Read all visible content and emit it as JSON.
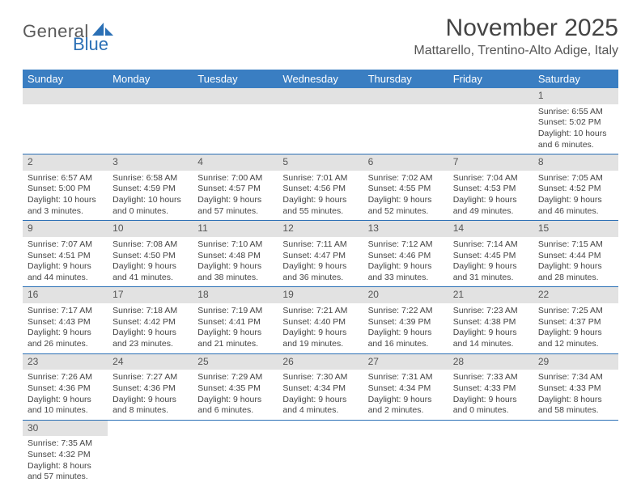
{
  "logo": {
    "general": "General",
    "blue": "Blue"
  },
  "title": "November 2025",
  "location": "Mattarello, Trentino-Alto Adige, Italy",
  "dayHeaders": [
    "Sunday",
    "Monday",
    "Tuesday",
    "Wednesday",
    "Thursday",
    "Friday",
    "Saturday"
  ],
  "colors": {
    "header_bg": "#3a7ec2",
    "header_fg": "#ffffff",
    "daynum_bg": "#e2e2e2",
    "cell_border": "#2a6fb5",
    "text": "#444444",
    "logo_gray": "#5a5a5a",
    "logo_blue": "#2a6fb5"
  },
  "weeks": [
    [
      null,
      null,
      null,
      null,
      null,
      null,
      {
        "n": "1",
        "sunrise": "Sunrise: 6:55 AM",
        "sunset": "Sunset: 5:02 PM",
        "day1": "Daylight: 10 hours",
        "day2": "and 6 minutes."
      }
    ],
    [
      {
        "n": "2",
        "sunrise": "Sunrise: 6:57 AM",
        "sunset": "Sunset: 5:00 PM",
        "day1": "Daylight: 10 hours",
        "day2": "and 3 minutes."
      },
      {
        "n": "3",
        "sunrise": "Sunrise: 6:58 AM",
        "sunset": "Sunset: 4:59 PM",
        "day1": "Daylight: 10 hours",
        "day2": "and 0 minutes."
      },
      {
        "n": "4",
        "sunrise": "Sunrise: 7:00 AM",
        "sunset": "Sunset: 4:57 PM",
        "day1": "Daylight: 9 hours",
        "day2": "and 57 minutes."
      },
      {
        "n": "5",
        "sunrise": "Sunrise: 7:01 AM",
        "sunset": "Sunset: 4:56 PM",
        "day1": "Daylight: 9 hours",
        "day2": "and 55 minutes."
      },
      {
        "n": "6",
        "sunrise": "Sunrise: 7:02 AM",
        "sunset": "Sunset: 4:55 PM",
        "day1": "Daylight: 9 hours",
        "day2": "and 52 minutes."
      },
      {
        "n": "7",
        "sunrise": "Sunrise: 7:04 AM",
        "sunset": "Sunset: 4:53 PM",
        "day1": "Daylight: 9 hours",
        "day2": "and 49 minutes."
      },
      {
        "n": "8",
        "sunrise": "Sunrise: 7:05 AM",
        "sunset": "Sunset: 4:52 PM",
        "day1": "Daylight: 9 hours",
        "day2": "and 46 minutes."
      }
    ],
    [
      {
        "n": "9",
        "sunrise": "Sunrise: 7:07 AM",
        "sunset": "Sunset: 4:51 PM",
        "day1": "Daylight: 9 hours",
        "day2": "and 44 minutes."
      },
      {
        "n": "10",
        "sunrise": "Sunrise: 7:08 AM",
        "sunset": "Sunset: 4:50 PM",
        "day1": "Daylight: 9 hours",
        "day2": "and 41 minutes."
      },
      {
        "n": "11",
        "sunrise": "Sunrise: 7:10 AM",
        "sunset": "Sunset: 4:48 PM",
        "day1": "Daylight: 9 hours",
        "day2": "and 38 minutes."
      },
      {
        "n": "12",
        "sunrise": "Sunrise: 7:11 AM",
        "sunset": "Sunset: 4:47 PM",
        "day1": "Daylight: 9 hours",
        "day2": "and 36 minutes."
      },
      {
        "n": "13",
        "sunrise": "Sunrise: 7:12 AM",
        "sunset": "Sunset: 4:46 PM",
        "day1": "Daylight: 9 hours",
        "day2": "and 33 minutes."
      },
      {
        "n": "14",
        "sunrise": "Sunrise: 7:14 AM",
        "sunset": "Sunset: 4:45 PM",
        "day1": "Daylight: 9 hours",
        "day2": "and 31 minutes."
      },
      {
        "n": "15",
        "sunrise": "Sunrise: 7:15 AM",
        "sunset": "Sunset: 4:44 PM",
        "day1": "Daylight: 9 hours",
        "day2": "and 28 minutes."
      }
    ],
    [
      {
        "n": "16",
        "sunrise": "Sunrise: 7:17 AM",
        "sunset": "Sunset: 4:43 PM",
        "day1": "Daylight: 9 hours",
        "day2": "and 26 minutes."
      },
      {
        "n": "17",
        "sunrise": "Sunrise: 7:18 AM",
        "sunset": "Sunset: 4:42 PM",
        "day1": "Daylight: 9 hours",
        "day2": "and 23 minutes."
      },
      {
        "n": "18",
        "sunrise": "Sunrise: 7:19 AM",
        "sunset": "Sunset: 4:41 PM",
        "day1": "Daylight: 9 hours",
        "day2": "and 21 minutes."
      },
      {
        "n": "19",
        "sunrise": "Sunrise: 7:21 AM",
        "sunset": "Sunset: 4:40 PM",
        "day1": "Daylight: 9 hours",
        "day2": "and 19 minutes."
      },
      {
        "n": "20",
        "sunrise": "Sunrise: 7:22 AM",
        "sunset": "Sunset: 4:39 PM",
        "day1": "Daylight: 9 hours",
        "day2": "and 16 minutes."
      },
      {
        "n": "21",
        "sunrise": "Sunrise: 7:23 AM",
        "sunset": "Sunset: 4:38 PM",
        "day1": "Daylight: 9 hours",
        "day2": "and 14 minutes."
      },
      {
        "n": "22",
        "sunrise": "Sunrise: 7:25 AM",
        "sunset": "Sunset: 4:37 PM",
        "day1": "Daylight: 9 hours",
        "day2": "and 12 minutes."
      }
    ],
    [
      {
        "n": "23",
        "sunrise": "Sunrise: 7:26 AM",
        "sunset": "Sunset: 4:36 PM",
        "day1": "Daylight: 9 hours",
        "day2": "and 10 minutes."
      },
      {
        "n": "24",
        "sunrise": "Sunrise: 7:27 AM",
        "sunset": "Sunset: 4:36 PM",
        "day1": "Daylight: 9 hours",
        "day2": "and 8 minutes."
      },
      {
        "n": "25",
        "sunrise": "Sunrise: 7:29 AM",
        "sunset": "Sunset: 4:35 PM",
        "day1": "Daylight: 9 hours",
        "day2": "and 6 minutes."
      },
      {
        "n": "26",
        "sunrise": "Sunrise: 7:30 AM",
        "sunset": "Sunset: 4:34 PM",
        "day1": "Daylight: 9 hours",
        "day2": "and 4 minutes."
      },
      {
        "n": "27",
        "sunrise": "Sunrise: 7:31 AM",
        "sunset": "Sunset: 4:34 PM",
        "day1": "Daylight: 9 hours",
        "day2": "and 2 minutes."
      },
      {
        "n": "28",
        "sunrise": "Sunrise: 7:33 AM",
        "sunset": "Sunset: 4:33 PM",
        "day1": "Daylight: 9 hours",
        "day2": "and 0 minutes."
      },
      {
        "n": "29",
        "sunrise": "Sunrise: 7:34 AM",
        "sunset": "Sunset: 4:33 PM",
        "day1": "Daylight: 8 hours",
        "day2": "and 58 minutes."
      }
    ],
    [
      {
        "n": "30",
        "sunrise": "Sunrise: 7:35 AM",
        "sunset": "Sunset: 4:32 PM",
        "day1": "Daylight: 8 hours",
        "day2": "and 57 minutes."
      },
      null,
      null,
      null,
      null,
      null,
      null
    ]
  ]
}
